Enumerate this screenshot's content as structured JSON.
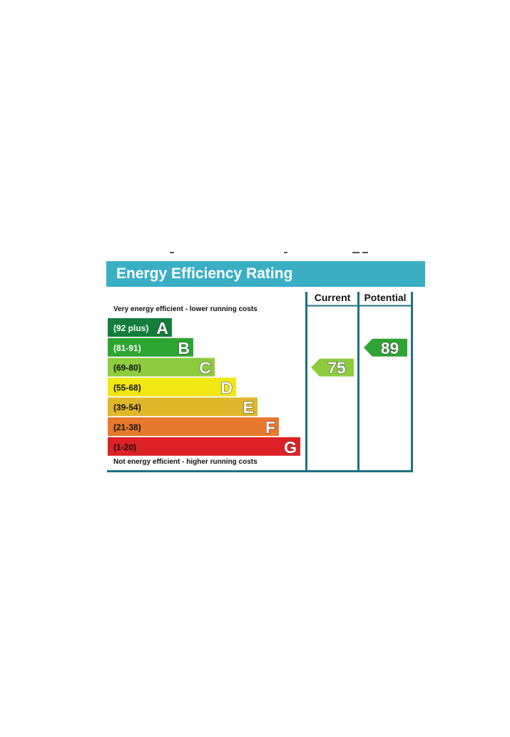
{
  "chart_data": {
    "type": "bar",
    "title": "Energy Efficiency Rating",
    "columns": [
      "Current",
      "Potential"
    ],
    "top_note": "Very energy efficient - lower running costs",
    "bottom_note": "Not energy efficient - higher running costs",
    "bands": [
      {
        "letter": "A",
        "range": "(92 plus)",
        "color": "#137d3b",
        "text_color": "#ffffff"
      },
      {
        "letter": "B",
        "range": "(81-91)",
        "color": "#2ea532",
        "text_color": "#ffffff"
      },
      {
        "letter": "C",
        "range": "(69-80)",
        "color": "#8ccc3e",
        "text_color": "#111111"
      },
      {
        "letter": "D",
        "range": "(55-68)",
        "color": "#f1e713",
        "text_color": "#111111"
      },
      {
        "letter": "E",
        "range": "(39-54)",
        "color": "#e0b72a",
        "text_color": "#111111"
      },
      {
        "letter": "F",
        "range": "(21-38)",
        "color": "#e6792d",
        "text_color": "#111111"
      },
      {
        "letter": "G",
        "range": "(1-20)",
        "color": "#dc2127",
        "text_color": "#111111"
      }
    ],
    "current": {
      "value": 75,
      "band": "C",
      "color": "#8ccc3e"
    },
    "potential": {
      "value": 89,
      "band": "B",
      "color": "#2ea532"
    },
    "colors": {
      "header": "#3aafc4",
      "frame": "#1f6f82"
    }
  }
}
